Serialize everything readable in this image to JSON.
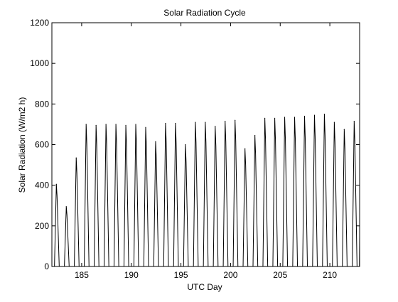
{
  "chart_data": {
    "type": "line",
    "title": "Solar Radiation Cycle",
    "xlabel": "UTC Day",
    "ylabel": "Solar Radiation (W/m2 h)",
    "xlim": [
      182,
      213
    ],
    "ylim": [
      0,
      1200
    ],
    "xticks": [
      185,
      190,
      195,
      200,
      205,
      210
    ],
    "yticks": [
      0,
      200,
      400,
      600,
      800,
      1000,
      1200
    ],
    "grid": false,
    "line_color": "#000000",
    "daily_peaks": [
      {
        "day": 182.5,
        "peak": 405
      },
      {
        "day": 183.5,
        "peak": 295
      },
      {
        "day": 184.5,
        "peak": 535
      },
      {
        "day": 185.5,
        "peak": 700
      },
      {
        "day": 186.5,
        "peak": 695
      },
      {
        "day": 187.5,
        "peak": 700
      },
      {
        "day": 188.5,
        "peak": 700
      },
      {
        "day": 189.5,
        "peak": 695
      },
      {
        "day": 190.5,
        "peak": 700
      },
      {
        "day": 191.5,
        "peak": 685
      },
      {
        "day": 192.5,
        "peak": 615
      },
      {
        "day": 193.5,
        "peak": 705
      },
      {
        "day": 194.5,
        "peak": 705
      },
      {
        "day": 195.5,
        "peak": 600
      },
      {
        "day": 196.5,
        "peak": 710
      },
      {
        "day": 197.5,
        "peak": 710
      },
      {
        "day": 198.5,
        "peak": 690
      },
      {
        "day": 199.5,
        "peak": 715
      },
      {
        "day": 200.5,
        "peak": 720
      },
      {
        "day": 201.5,
        "peak": 580
      },
      {
        "day": 202.5,
        "peak": 645
      },
      {
        "day": 203.5,
        "peak": 730
      },
      {
        "day": 204.5,
        "peak": 730
      },
      {
        "day": 205.5,
        "peak": 735
      },
      {
        "day": 206.5,
        "peak": 735
      },
      {
        "day": 207.5,
        "peak": 740
      },
      {
        "day": 208.5,
        "peak": 745
      },
      {
        "day": 209.5,
        "peak": 750
      },
      {
        "day": 210.5,
        "peak": 710
      },
      {
        "day": 211.5,
        "peak": 675
      },
      {
        "day": 212.5,
        "peak": 715
      }
    ],
    "last_value": 150
  }
}
